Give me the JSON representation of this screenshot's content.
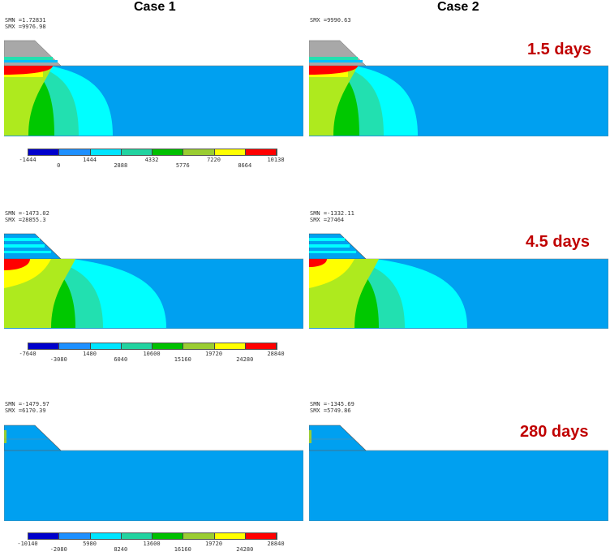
{
  "headers": {
    "case1": "Case 1",
    "case2": "Case 2"
  },
  "colors": {
    "background": "#00A0F0",
    "mesh_gray": "#a8a8a8",
    "day_label": "#C00000",
    "legend": [
      "#0000CC",
      "#1E90FF",
      "#00E5FF",
      "#22D3A0",
      "#00C000",
      "#9ACD32",
      "#FFFF00",
      "#FF0000"
    ]
  },
  "rows": [
    {
      "day_label": "1.5 days",
      "case1": {
        "line1": "SMN =1.72831",
        "line2": "SMX =9976.98",
        "variant": "early_gray"
      },
      "case2": {
        "line1": "SMX =9990.63",
        "line2": "",
        "variant": "early_gray"
      },
      "legend": {
        "top_labels": [
          "-1444",
          "1444",
          "4332",
          "7220",
          "10138"
        ],
        "bottom_labels": [
          "0",
          "2888",
          "5776",
          "8664"
        ]
      }
    },
    {
      "day_label": "4.5 days",
      "case1": {
        "line1": "SMN =-1473.02",
        "line2": "SMX =28855.3",
        "variant": "mid_c1"
      },
      "case2": {
        "line1": "SMN =-1332.11",
        "line2": "SMX =27464",
        "variant": "mid_c2"
      },
      "legend": {
        "top_labels": [
          "-7640",
          "1480",
          "10600",
          "19720",
          "28840"
        ],
        "bottom_labels": [
          "-3080",
          "6040",
          "15160",
          "24280"
        ]
      }
    },
    {
      "day_label": "280 days",
      "case1": {
        "line1": "SMN =-1479.97",
        "line2": "SMX =6170.39",
        "variant": "late"
      },
      "case2": {
        "line1": "SMN =-1345.69",
        "line2": "SMX =5749.86",
        "variant": "late"
      },
      "legend": {
        "top_labels": [
          "-10140",
          "5980",
          "13600",
          "19720",
          "28840"
        ],
        "bottom_labels": [
          "-2080",
          "8240",
          "16160",
          "24280"
        ]
      }
    }
  ]
}
